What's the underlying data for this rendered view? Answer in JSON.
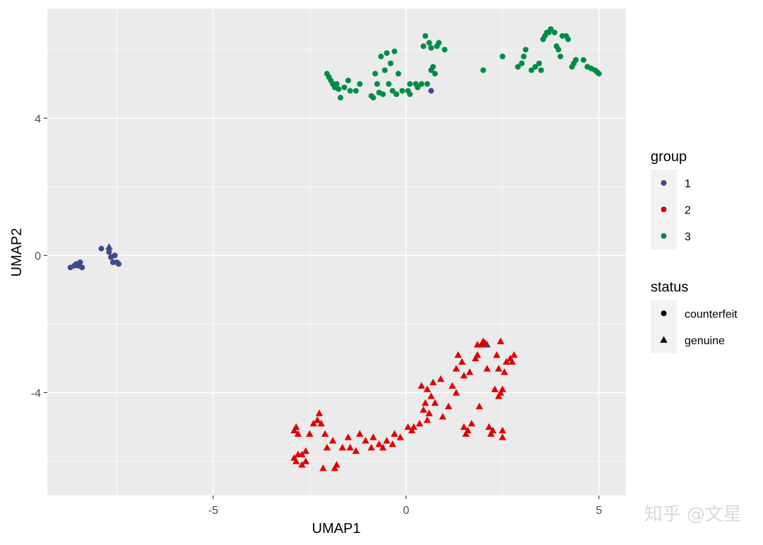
{
  "chart_data": {
    "type": "scatter",
    "xlabel": "UMAP1",
    "ylabel": "UMAP2",
    "xlim": [
      -9.3,
      5.7
    ],
    "ylim": [
      -7.0,
      7.2
    ],
    "x_ticks": [
      -5,
      0,
      5
    ],
    "y_ticks": [
      -4,
      0,
      4
    ],
    "x_tick_labels": [
      "-5",
      "0",
      "5"
    ],
    "y_tick_labels": [
      "-4",
      "0",
      "4"
    ],
    "grid": true,
    "legend_position": "right",
    "legends": [
      {
        "title": "group",
        "entries": [
          {
            "label": "1",
            "color": "#3e4a89"
          },
          {
            "label": "2",
            "color": "#e00000"
          },
          {
            "label": "3",
            "color": "#008c45"
          }
        ]
      },
      {
        "title": "status",
        "entries": [
          {
            "label": "counterfeit",
            "shape": "circle"
          },
          {
            "label": "genuine",
            "shape": "triangle"
          }
        ]
      }
    ],
    "series": [
      {
        "group": "1",
        "status": "counterfeit",
        "color": "#3e4a89",
        "shape": "circle",
        "points": [
          [
            -8.7,
            -0.35
          ],
          [
            -8.6,
            -0.3
          ],
          [
            -8.55,
            -0.25
          ],
          [
            -8.5,
            -0.3
          ],
          [
            -8.45,
            -0.2
          ],
          [
            -8.4,
            -0.35
          ],
          [
            -7.9,
            0.2
          ],
          [
            -7.7,
            0.1
          ],
          [
            -7.65,
            -0.05
          ],
          [
            -7.6,
            -0.2
          ],
          [
            -7.55,
            0.0
          ],
          [
            -7.5,
            -0.2
          ],
          [
            -7.45,
            -0.25
          ],
          [
            0.65,
            4.8
          ]
        ]
      },
      {
        "group": "1",
        "status": "genuine",
        "color": "#3e4a89",
        "shape": "triangle",
        "points": [
          [
            -7.7,
            0.25
          ],
          [
            2.1,
            -2.6
          ]
        ]
      },
      {
        "group": "2",
        "status": "genuine",
        "color": "#e00000",
        "shape": "triangle",
        "points": [
          [
            -2.9,
            -5.1
          ],
          [
            -2.85,
            -5.0
          ],
          [
            -2.8,
            -5.2
          ],
          [
            -2.9,
            -5.9
          ],
          [
            -2.85,
            -6.0
          ],
          [
            -2.8,
            -5.8
          ],
          [
            -2.7,
            -5.8
          ],
          [
            -2.7,
            -6.1
          ],
          [
            -2.6,
            -6.0
          ],
          [
            -2.6,
            -5.7
          ],
          [
            -2.5,
            -5.2
          ],
          [
            -2.4,
            -4.9
          ],
          [
            -2.3,
            -4.8
          ],
          [
            -2.25,
            -4.6
          ],
          [
            -2.2,
            -4.9
          ],
          [
            -2.1,
            -5.2
          ],
          [
            -2.05,
            -5.6
          ],
          [
            -2.15,
            -6.2
          ],
          [
            -1.9,
            -5.4
          ],
          [
            -1.85,
            -6.2
          ],
          [
            -1.8,
            -6.1
          ],
          [
            -1.65,
            -5.6
          ],
          [
            -1.5,
            -5.3
          ],
          [
            -1.45,
            -5.6
          ],
          [
            -1.3,
            -5.7
          ],
          [
            -1.2,
            -5.2
          ],
          [
            -1.05,
            -5.4
          ],
          [
            -0.9,
            -5.6
          ],
          [
            -0.85,
            -5.3
          ],
          [
            -0.7,
            -5.5
          ],
          [
            -0.6,
            -5.6
          ],
          [
            -0.5,
            -5.4
          ],
          [
            -0.35,
            -5.5
          ],
          [
            -0.3,
            -5.2
          ],
          [
            -0.15,
            -5.3
          ],
          [
            0.05,
            -5.0
          ],
          [
            0.15,
            -5.1
          ],
          [
            0.2,
            -5.0
          ],
          [
            0.35,
            -4.9
          ],
          [
            0.45,
            -4.5
          ],
          [
            0.55,
            -4.8
          ],
          [
            0.5,
            -4.3
          ],
          [
            0.6,
            -4.6
          ],
          [
            0.65,
            -4.1
          ],
          [
            0.75,
            -4.3
          ],
          [
            0.4,
            -3.8
          ],
          [
            0.55,
            -3.9
          ],
          [
            0.7,
            -3.7
          ],
          [
            0.9,
            -3.6
          ],
          [
            0.95,
            -4.7
          ],
          [
            1.1,
            -4.4
          ],
          [
            1.2,
            -3.8
          ],
          [
            1.3,
            -4.0
          ],
          [
            1.3,
            -3.3
          ],
          [
            1.35,
            -2.9
          ],
          [
            1.45,
            -3.1
          ],
          [
            1.5,
            -3.5
          ],
          [
            1.5,
            -5.0
          ],
          [
            1.55,
            -5.2
          ],
          [
            1.6,
            -5.1
          ],
          [
            1.7,
            -4.9
          ],
          [
            1.65,
            -3.4
          ],
          [
            1.8,
            -3.0
          ],
          [
            1.85,
            -2.9
          ],
          [
            1.85,
            -2.6
          ],
          [
            1.9,
            -4.4
          ],
          [
            1.95,
            -2.6
          ],
          [
            2.0,
            -2.5
          ],
          [
            2.05,
            -2.55
          ],
          [
            2.1,
            -3.3
          ],
          [
            2.15,
            -5.0
          ],
          [
            2.2,
            -5.2
          ],
          [
            2.25,
            -5.1
          ],
          [
            2.3,
            -3.9
          ],
          [
            2.35,
            -2.9
          ],
          [
            2.4,
            -4.1
          ],
          [
            2.4,
            -3.3
          ],
          [
            2.45,
            -4.0
          ],
          [
            2.5,
            -3.9
          ],
          [
            2.5,
            -5.1
          ],
          [
            2.5,
            -5.3
          ],
          [
            2.45,
            -2.5
          ],
          [
            2.55,
            -3.4
          ],
          [
            2.6,
            -3.1
          ],
          [
            2.7,
            -3.0
          ],
          [
            2.75,
            -3.1
          ],
          [
            2.8,
            -2.9
          ]
        ]
      },
      {
        "group": "3",
        "status": "counterfeit",
        "color": "#008c45",
        "shape": "circle",
        "points": [
          [
            -2.05,
            5.3
          ],
          [
            -2.0,
            5.2
          ],
          [
            -1.95,
            5.1
          ],
          [
            -1.9,
            5.0
          ],
          [
            -1.85,
            4.9
          ],
          [
            -1.8,
            5.0
          ],
          [
            -1.75,
            4.85
          ],
          [
            -1.7,
            4.6
          ],
          [
            -1.6,
            4.9
          ],
          [
            -1.5,
            5.1
          ],
          [
            -1.45,
            4.8
          ],
          [
            -1.3,
            4.8
          ],
          [
            -1.2,
            5.0
          ],
          [
            -0.9,
            4.65
          ],
          [
            -0.85,
            4.6
          ],
          [
            -0.8,
            5.3
          ],
          [
            -0.75,
            5.0
          ],
          [
            -0.7,
            4.75
          ],
          [
            -0.65,
            5.8
          ],
          [
            -0.6,
            4.7
          ],
          [
            -0.55,
            5.4
          ],
          [
            -0.5,
            5.9
          ],
          [
            -0.45,
            5.0
          ],
          [
            -0.4,
            5.6
          ],
          [
            -0.35,
            4.8
          ],
          [
            -0.3,
            5.95
          ],
          [
            -0.25,
            4.7
          ],
          [
            -0.2,
            5.3
          ],
          [
            -0.1,
            4.8
          ],
          [
            0.05,
            4.8
          ],
          [
            0.1,
            4.7
          ],
          [
            0.1,
            5.0
          ],
          [
            0.25,
            5.0
          ],
          [
            0.3,
            4.9
          ],
          [
            0.4,
            5.0
          ],
          [
            0.45,
            6.1
          ],
          [
            0.5,
            6.4
          ],
          [
            0.55,
            5.0
          ],
          [
            0.6,
            6.2
          ],
          [
            0.65,
            5.4
          ],
          [
            0.65,
            6.05
          ],
          [
            0.7,
            5.5
          ],
          [
            0.75,
            5.3
          ],
          [
            0.8,
            6.1
          ],
          [
            0.85,
            6.2
          ],
          [
            1.0,
            6.0
          ],
          [
            2.0,
            5.4
          ],
          [
            2.5,
            5.8
          ],
          [
            2.9,
            5.5
          ],
          [
            3.0,
            5.6
          ],
          [
            3.05,
            5.8
          ],
          [
            3.1,
            6.0
          ],
          [
            3.25,
            5.4
          ],
          [
            3.35,
            5.5
          ],
          [
            3.45,
            5.6
          ],
          [
            3.5,
            5.4
          ],
          [
            3.55,
            6.3
          ],
          [
            3.6,
            6.4
          ],
          [
            3.65,
            6.5
          ],
          [
            3.7,
            6.5
          ],
          [
            3.75,
            6.6
          ],
          [
            3.85,
            6.5
          ],
          [
            3.9,
            6.1
          ],
          [
            3.95,
            6.0
          ],
          [
            4.0,
            5.8
          ],
          [
            4.05,
            6.4
          ],
          [
            4.15,
            6.4
          ],
          [
            4.2,
            6.3
          ],
          [
            4.3,
            5.5
          ],
          [
            4.35,
            5.6
          ],
          [
            4.4,
            5.7
          ],
          [
            4.6,
            5.7
          ],
          [
            4.7,
            5.5
          ],
          [
            4.8,
            5.45
          ],
          [
            4.9,
            5.4
          ],
          [
            4.95,
            5.35
          ],
          [
            5.0,
            5.3
          ]
        ]
      }
    ]
  },
  "watermark": "知乎 @文星"
}
